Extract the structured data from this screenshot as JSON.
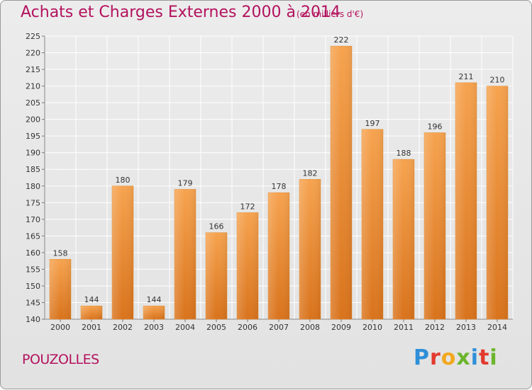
{
  "header": {
    "title": "Achats et Charges Externes 2000 à 2014",
    "subtitle": "(en milliers d'€)"
  },
  "footer": {
    "town": "POUZOLLES",
    "logo": "Proxiti"
  },
  "colors": {
    "title": "#b3125e",
    "bar_top": "#f6a34f",
    "bar_bottom": "#d9731c"
  },
  "chart_data": {
    "type": "bar",
    "title": "Achats et Charges Externes 2000 à 2014",
    "subtitle": "(en milliers d'€)",
    "xlabel": "",
    "ylabel": "",
    "categories": [
      "2000",
      "2001",
      "2002",
      "2003",
      "2004",
      "2005",
      "2006",
      "2007",
      "2008",
      "2009",
      "2010",
      "2011",
      "2012",
      "2013",
      "2014"
    ],
    "values": [
      158,
      144,
      180,
      144,
      179,
      166,
      172,
      178,
      182,
      222,
      197,
      188,
      196,
      211,
      210
    ],
    "ylim": [
      140,
      225
    ],
    "yticks": [
      140,
      145,
      150,
      155,
      160,
      165,
      170,
      175,
      180,
      185,
      190,
      195,
      200,
      205,
      210,
      215,
      220,
      225
    ],
    "grid": true,
    "legend": "none"
  }
}
